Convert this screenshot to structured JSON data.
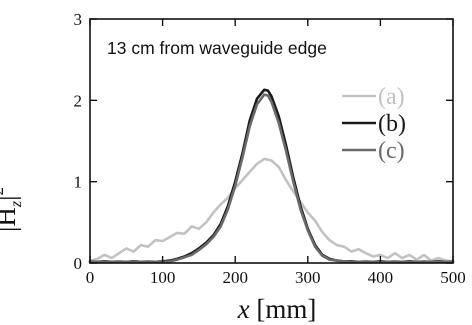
{
  "chart_data": {
    "type": "line",
    "annotation": "13 cm from waveguide edge",
    "xlabel_var": "x",
    "xlabel_unit": " [mm]",
    "ylabel_base": "|H",
    "ylabel_sub": "z",
    "ylabel_bar": "|",
    "ylabel_sup": "2",
    "xlim": [
      0,
      500
    ],
    "ylim": [
      0,
      3
    ],
    "xticks": [
      0,
      100,
      200,
      300,
      400,
      500
    ],
    "yticks": [
      0,
      1,
      2,
      3
    ],
    "xtick_labels": [
      "0",
      "100",
      "200",
      "300",
      "400",
      "500"
    ],
    "ytick_labels": [
      "0",
      "1",
      "2",
      "3"
    ],
    "grid": false,
    "legend_position": "right",
    "series": [
      {
        "name": "(a)",
        "color": "#c2c2c2",
        "x": [
          0,
          10,
          20,
          30,
          40,
          50,
          60,
          70,
          80,
          90,
          100,
          110,
          120,
          130,
          140,
          150,
          160,
          170,
          180,
          190,
          200,
          210,
          220,
          230,
          240,
          250,
          260,
          270,
          280,
          290,
          300,
          310,
          320,
          330,
          340,
          350,
          360,
          370,
          380,
          390,
          400,
          410,
          420,
          430,
          440,
          450,
          460,
          470,
          480,
          490,
          500
        ],
        "y": [
          0.03,
          0.05,
          0.1,
          0.06,
          0.12,
          0.18,
          0.14,
          0.22,
          0.2,
          0.28,
          0.27,
          0.32,
          0.37,
          0.36,
          0.45,
          0.42,
          0.5,
          0.62,
          0.72,
          0.8,
          0.92,
          1.02,
          1.12,
          1.22,
          1.28,
          1.26,
          1.18,
          1.02,
          0.88,
          0.75,
          0.62,
          0.52,
          0.38,
          0.28,
          0.22,
          0.2,
          0.14,
          0.17,
          0.12,
          0.08,
          0.1,
          0.06,
          0.12,
          0.06,
          0.1,
          0.04,
          0.1,
          0.03,
          0.06,
          0.03,
          0.02
        ]
      },
      {
        "name": "(b)",
        "color": "#1a1a1a",
        "x": [
          0,
          20,
          40,
          60,
          80,
          100,
          110,
          120,
          130,
          140,
          150,
          160,
          170,
          180,
          190,
          200,
          210,
          220,
          230,
          240,
          245,
          250,
          260,
          270,
          280,
          290,
          300,
          310,
          320,
          330,
          340,
          350,
          360,
          380,
          400,
          420,
          440,
          460,
          480,
          500
        ],
        "y": [
          0.01,
          0.02,
          0.01,
          0.02,
          0.01,
          0.02,
          0.03,
          0.05,
          0.08,
          0.12,
          0.18,
          0.25,
          0.34,
          0.48,
          0.7,
          1.0,
          1.35,
          1.75,
          2.02,
          2.13,
          2.12,
          2.05,
          1.8,
          1.45,
          1.05,
          0.7,
          0.42,
          0.22,
          0.1,
          0.05,
          0.03,
          0.02,
          0.02,
          0.01,
          0.02,
          0.01,
          0.02,
          0.01,
          0.02,
          0.01
        ]
      },
      {
        "name": "(c)",
        "color": "#6a6a6a",
        "x": [
          0,
          20,
          40,
          60,
          80,
          100,
          110,
          120,
          130,
          140,
          150,
          160,
          170,
          180,
          190,
          200,
          210,
          220,
          230,
          240,
          245,
          250,
          260,
          270,
          280,
          290,
          300,
          310,
          320,
          330,
          340,
          350,
          360,
          380,
          400,
          420,
          440,
          460,
          480,
          500
        ],
        "y": [
          0.02,
          0.01,
          0.02,
          0.01,
          0.02,
          0.01,
          0.02,
          0.04,
          0.07,
          0.1,
          0.16,
          0.23,
          0.32,
          0.45,
          0.66,
          0.95,
          1.3,
          1.68,
          1.95,
          2.07,
          2.06,
          1.98,
          1.72,
          1.38,
          1.0,
          0.66,
          0.4,
          0.2,
          0.09,
          0.04,
          0.03,
          0.02,
          0.01,
          0.02,
          0.01,
          0.02,
          0.01,
          0.02,
          0.01,
          0.02
        ]
      }
    ]
  }
}
